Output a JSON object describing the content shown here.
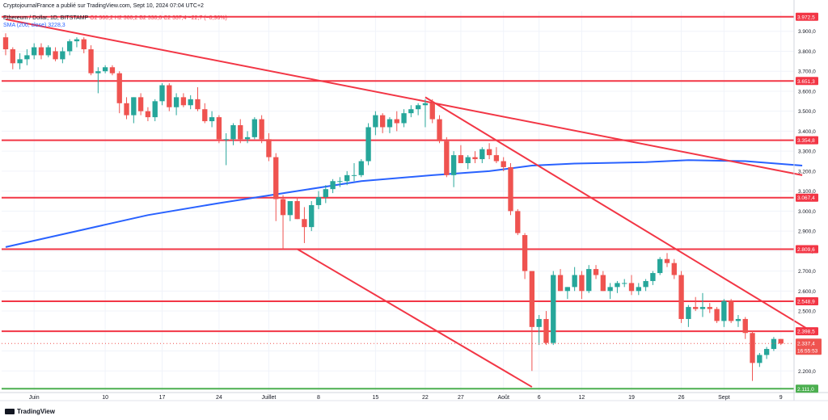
{
  "header": {
    "published": "CryptojournalFrance a publié sur TradingView.com, Sept 10, 2024 07:04 UTC+2",
    "symbol": "Ethereum / Dollar, 1D, BITSTAMP",
    "ohlc": "O2 360,2  H2 360,2  B2 330,0  C2 337,4  −22,7 (−0,96%)",
    "sma_label": "SMA (200, close)",
    "sma_value": "3228,3"
  },
  "footer": {
    "brand": "TradingView"
  },
  "colors": {
    "up": "#26a69a",
    "down": "#ef5350",
    "levels": "#f23645",
    "support": "#4caf50",
    "sma": "#2962ff"
  },
  "chart_data": {
    "type": "candlestick",
    "currency": "USD",
    "ylim": [
      2100,
      4000
    ],
    "y_ticks": [
      "3.900,0",
      "3.800,0",
      "3.700,0",
      "3.600,0",
      "3.500,0",
      "3.400,0",
      "3.300,0",
      "3.200,0",
      "3.100,0",
      "3.000,0",
      "2.900,0",
      "2.800,0",
      "2.700,0",
      "2.600,0",
      "2.500,0",
      "2.400,0",
      "2.300,0",
      "2.200,0"
    ],
    "x_ticks": [
      {
        "label": "Juin",
        "index": 4
      },
      {
        "label": "10",
        "index": 14
      },
      {
        "label": "17",
        "index": 22
      },
      {
        "label": "24",
        "index": 30
      },
      {
        "label": "Juillet",
        "index": 37
      },
      {
        "label": "8",
        "index": 44
      },
      {
        "label": "15",
        "index": 52
      },
      {
        "label": "22",
        "index": 59
      },
      {
        "label": "27",
        "index": 64
      },
      {
        "label": "Août",
        "index": 70
      },
      {
        "label": "6",
        "index": 75
      },
      {
        "label": "12",
        "index": 81
      },
      {
        "label": "19",
        "index": 88
      },
      {
        "label": "26",
        "index": 95
      },
      {
        "label": "Sept",
        "index": 101
      },
      {
        "label": "9",
        "index": 109
      }
    ],
    "horizontal_levels": [
      {
        "label": "3.972,5",
        "value": 3972.5,
        "color": "#f23645"
      },
      {
        "label": "3.651,3",
        "value": 3651.3,
        "color": "#f23645"
      },
      {
        "label": "3.354,8",
        "value": 3354.8,
        "color": "#f23645"
      },
      {
        "label": "3.067,4",
        "value": 3067.4,
        "color": "#f23645"
      },
      {
        "label": "2.809,6",
        "value": 2809.6,
        "color": "#f23645"
      },
      {
        "label": "2.548,9",
        "value": 2548.9,
        "color": "#f23645"
      },
      {
        "label": "2.398,5",
        "value": 2398.5,
        "color": "#f23645"
      },
      {
        "label": "2.111,0",
        "value": 2111.0,
        "color": "#4caf50"
      }
    ],
    "last_price": {
      "label": "2.337,4",
      "value": 2337.4,
      "countdown": "16:55:53"
    },
    "trendlines": [
      {
        "from": [
          0,
          3960
        ],
        "to": [
          112,
          3180
        ]
      },
      {
        "from": [
          59,
          3570
        ],
        "to": [
          113,
          2405
        ]
      },
      {
        "from": [
          41,
          2810
        ],
        "to": [
          74,
          2120
        ]
      }
    ],
    "sma_200": [
      [
        0,
        2820
      ],
      [
        10,
        2900
      ],
      [
        20,
        2980
      ],
      [
        30,
        3040
      ],
      [
        40,
        3095
      ],
      [
        50,
        3150
      ],
      [
        60,
        3180
      ],
      [
        68,
        3200
      ],
      [
        74,
        3228
      ],
      [
        80,
        3238
      ],
      [
        90,
        3245
      ],
      [
        96,
        3255
      ],
      [
        104,
        3250
      ],
      [
        112,
        3228
      ]
    ],
    "candles": [
      [
        0,
        3870,
        3890,
        3780,
        3810
      ],
      [
        1,
        3810,
        3820,
        3710,
        3740
      ],
      [
        2,
        3740,
        3790,
        3710,
        3760
      ],
      [
        3,
        3760,
        3810,
        3730,
        3780
      ],
      [
        4,
        3780,
        3840,
        3760,
        3820
      ],
      [
        5,
        3820,
        3840,
        3760,
        3780
      ],
      [
        6,
        3780,
        3830,
        3770,
        3820
      ],
      [
        7,
        3800,
        3820,
        3750,
        3760
      ],
      [
        8,
        3760,
        3820,
        3740,
        3800
      ],
      [
        9,
        3800,
        3860,
        3780,
        3850
      ],
      [
        10,
        3850,
        3870,
        3820,
        3860
      ],
      [
        11,
        3860,
        3870,
        3790,
        3810
      ],
      [
        12,
        3810,
        3830,
        3680,
        3690
      ],
      [
        13,
        3690,
        3720,
        3590,
        3700
      ],
      [
        14,
        3700,
        3730,
        3690,
        3720
      ],
      [
        15,
        3720,
        3730,
        3680,
        3690
      ],
      [
        16,
        3690,
        3700,
        3490,
        3540
      ],
      [
        17,
        3540,
        3570,
        3460,
        3480
      ],
      [
        18,
        3480,
        3570,
        3440,
        3570
      ],
      [
        19,
        3570,
        3590,
        3480,
        3500
      ],
      [
        20,
        3500,
        3520,
        3450,
        3470
      ],
      [
        21,
        3470,
        3560,
        3450,
        3550
      ],
      [
        22,
        3550,
        3640,
        3530,
        3630
      ],
      [
        23,
        3630,
        3640,
        3500,
        3520
      ],
      [
        24,
        3520,
        3590,
        3480,
        3570
      ],
      [
        25,
        3570,
        3590,
        3520,
        3530
      ],
      [
        26,
        3530,
        3580,
        3510,
        3560
      ],
      [
        27,
        3560,
        3620,
        3500,
        3510
      ],
      [
        28,
        3510,
        3540,
        3440,
        3450
      ],
      [
        29,
        3450,
        3500,
        3420,
        3470
      ],
      [
        30,
        3470,
        3480,
        3340,
        3360
      ],
      [
        31,
        3360,
        3390,
        3230,
        3360
      ],
      [
        32,
        3360,
        3440,
        3330,
        3430
      ],
      [
        33,
        3430,
        3460,
        3340,
        3360
      ],
      [
        34,
        3360,
        3400,
        3340,
        3370
      ],
      [
        35,
        3370,
        3470,
        3360,
        3460
      ],
      [
        36,
        3460,
        3480,
        3340,
        3360
      ],
      [
        37,
        3360,
        3390,
        3250,
        3270
      ],
      [
        38,
        3270,
        3290,
        2950,
        3060
      ],
      [
        39,
        3060,
        3080,
        2810,
        2980
      ],
      [
        40,
        2980,
        3050,
        2950,
        3050
      ],
      [
        41,
        3050,
        3070,
        2960,
        2960
      ],
      [
        42,
        2960,
        3020,
        2840,
        2920
      ],
      [
        43,
        2920,
        3050,
        2900,
        3030
      ],
      [
        44,
        3030,
        3100,
        3010,
        3070
      ],
      [
        45,
        3070,
        3130,
        3040,
        3110
      ],
      [
        46,
        3110,
        3160,
        3090,
        3150
      ],
      [
        47,
        3150,
        3170,
        3120,
        3150
      ],
      [
        48,
        3150,
        3200,
        3130,
        3180
      ],
      [
        49,
        3180,
        3240,
        3150,
        3180
      ],
      [
        50,
        3180,
        3260,
        3170,
        3250
      ],
      [
        51,
        3250,
        3440,
        3230,
        3420
      ],
      [
        52,
        3420,
        3500,
        3380,
        3480
      ],
      [
        53,
        3480,
        3490,
        3390,
        3420
      ],
      [
        54,
        3420,
        3470,
        3390,
        3460
      ],
      [
        55,
        3460,
        3500,
        3400,
        3440
      ],
      [
        56,
        3440,
        3510,
        3420,
        3490
      ],
      [
        57,
        3490,
        3530,
        3470,
        3510
      ],
      [
        58,
        3510,
        3540,
        3480,
        3530
      ],
      [
        59,
        3530,
        3560,
        3420,
        3540
      ],
      [
        60,
        3540,
        3560,
        3440,
        3460
      ],
      [
        61,
        3460,
        3480,
        3340,
        3350
      ],
      [
        62,
        3350,
        3370,
        3170,
        3180
      ],
      [
        63,
        3180,
        3300,
        3120,
        3280
      ],
      [
        64,
        3280,
        3330,
        3240,
        3240
      ],
      [
        65,
        3240,
        3280,
        3210,
        3270
      ],
      [
        66,
        3270,
        3300,
        3240,
        3260
      ],
      [
        67,
        3260,
        3320,
        3240,
        3310
      ],
      [
        68,
        3310,
        3340,
        3260,
        3280
      ],
      [
        69,
        3280,
        3320,
        3240,
        3250
      ],
      [
        70,
        3250,
        3270,
        3200,
        3220
      ],
      [
        71,
        3220,
        3240,
        2980,
        3000
      ],
      [
        72,
        3000,
        3010,
        2880,
        2890
      ],
      [
        73,
        2880,
        2890,
        2660,
        2700
      ],
      [
        74,
        2700,
        2700,
        2200,
        2420
      ],
      [
        75,
        2420,
        2480,
        2330,
        2460
      ],
      [
        76,
        2460,
        2500,
        2330,
        2340
      ],
      [
        77,
        2340,
        2700,
        2330,
        2680
      ],
      [
        78,
        2680,
        2710,
        2600,
        2600
      ],
      [
        79,
        2600,
        2620,
        2560,
        2620
      ],
      [
        80,
        2620,
        2720,
        2600,
        2680
      ],
      [
        81,
        2680,
        2700,
        2560,
        2600
      ],
      [
        82,
        2600,
        2730,
        2590,
        2710
      ],
      [
        83,
        2710,
        2730,
        2660,
        2680
      ],
      [
        84,
        2680,
        2700,
        2600,
        2600
      ],
      [
        85,
        2600,
        2640,
        2560,
        2620
      ],
      [
        86,
        2620,
        2650,
        2590,
        2640
      ],
      [
        87,
        2640,
        2660,
        2620,
        2640
      ],
      [
        88,
        2640,
        2680,
        2580,
        2600
      ],
      [
        89,
        2600,
        2640,
        2580,
        2620
      ],
      [
        90,
        2620,
        2660,
        2600,
        2650
      ],
      [
        91,
        2650,
        2700,
        2630,
        2690
      ],
      [
        92,
        2690,
        2770,
        2680,
        2760
      ],
      [
        93,
        2760,
        2790,
        2720,
        2740
      ],
      [
        94,
        2740,
        2760,
        2660,
        2680
      ],
      [
        95,
        2680,
        2700,
        2440,
        2460
      ],
      [
        96,
        2460,
        2530,
        2420,
        2520
      ],
      [
        97,
        2520,
        2570,
        2500,
        2510
      ],
      [
        98,
        2510,
        2590,
        2470,
        2520
      ],
      [
        99,
        2520,
        2540,
        2490,
        2510
      ],
      [
        100,
        2510,
        2520,
        2440,
        2450
      ],
      [
        101,
        2450,
        2560,
        2420,
        2550
      ],
      [
        102,
        2550,
        2560,
        2440,
        2450
      ],
      [
        103,
        2450,
        2480,
        2420,
        2460
      ],
      [
        104,
        2460,
        2470,
        2360,
        2390
      ],
      [
        105,
        2390,
        2400,
        2150,
        2240
      ],
      [
        106,
        2240,
        2290,
        2220,
        2280
      ],
      [
        107,
        2280,
        2320,
        2260,
        2310
      ],
      [
        108,
        2310,
        2370,
        2300,
        2360
      ],
      [
        109,
        2360,
        2360,
        2330,
        2337
      ]
    ]
  }
}
